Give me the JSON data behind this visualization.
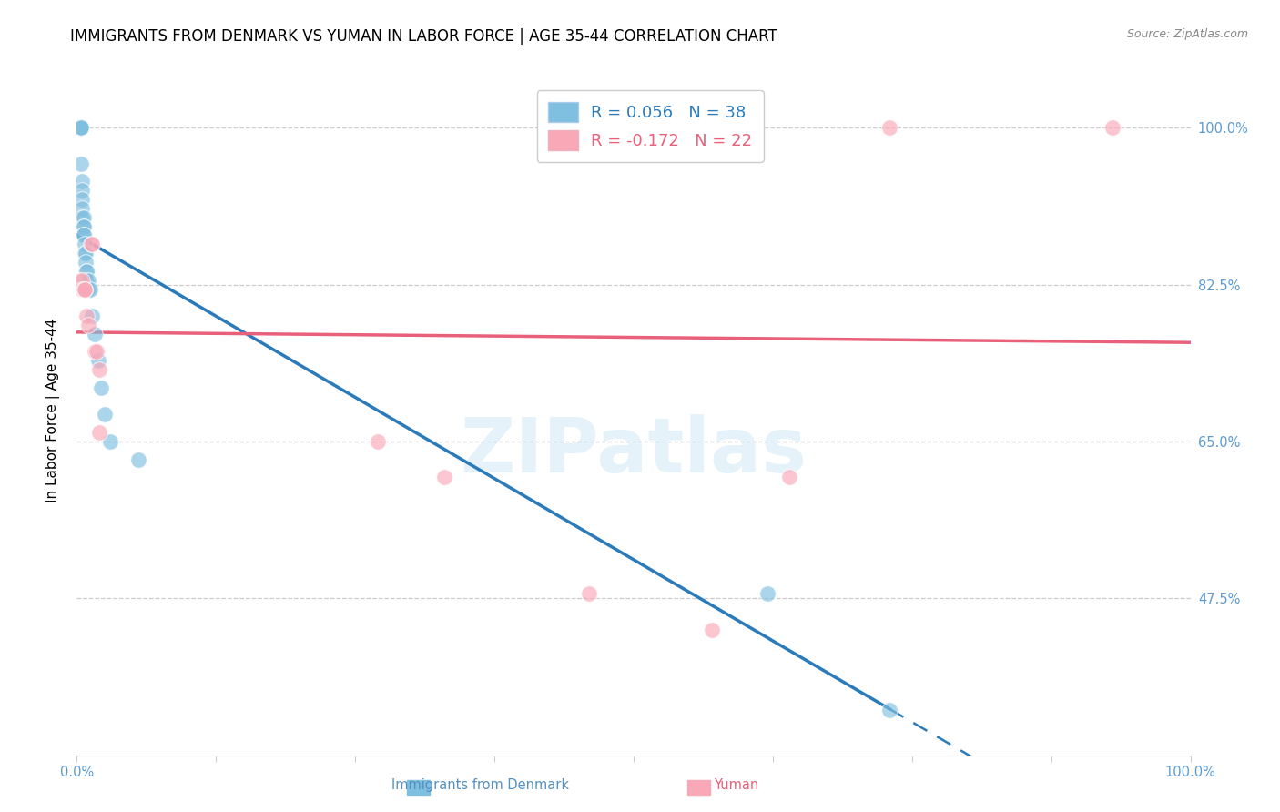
{
  "title": "IMMIGRANTS FROM DENMARK VS YUMAN IN LABOR FORCE | AGE 35-44 CORRELATION CHART",
  "source": "Source: ZipAtlas.com",
  "ylabel": "In Labor Force | Age 35-44",
  "xlim": [
    0.0,
    1.0
  ],
  "ylim": [
    0.3,
    1.07
  ],
  "yticks": [
    1.0,
    0.825,
    0.65,
    0.475
  ],
  "ytick_labels": [
    "100.0%",
    "82.5%",
    "65.0%",
    "47.5%"
  ],
  "xticks": [
    0.0,
    0.125,
    0.25,
    0.375,
    0.5,
    0.625,
    0.75,
    0.875,
    1.0
  ],
  "xtick_labels": [
    "0.0%",
    "",
    "",
    "",
    "",
    "",
    "",
    "",
    "100.0%"
  ],
  "denmark_R": 0.056,
  "denmark_N": 38,
  "yuman_R": -0.172,
  "yuman_N": 22,
  "denmark_color": "#7fbfdf",
  "yuman_color": "#f9a8b8",
  "denmark_line_color": "#2b7bba",
  "yuman_line_color": "#e8607a",
  "denmark_x": [
    0.002,
    0.002,
    0.002,
    0.003,
    0.003,
    0.004,
    0.004,
    0.004,
    0.004,
    0.005,
    0.005,
    0.005,
    0.005,
    0.005,
    0.006,
    0.006,
    0.006,
    0.006,
    0.006,
    0.007,
    0.007,
    0.008,
    0.008,
    0.009,
    0.009,
    0.009,
    0.01,
    0.01,
    0.012,
    0.014,
    0.016,
    0.019,
    0.022,
    0.025,
    0.03,
    0.055,
    0.62,
    0.73
  ],
  "denmark_y": [
    1.0,
    1.0,
    1.0,
    1.0,
    1.0,
    1.0,
    1.0,
    1.0,
    0.96,
    0.94,
    0.93,
    0.92,
    0.91,
    0.9,
    0.9,
    0.89,
    0.89,
    0.88,
    0.88,
    0.87,
    0.86,
    0.86,
    0.85,
    0.84,
    0.84,
    0.83,
    0.83,
    0.82,
    0.82,
    0.79,
    0.77,
    0.74,
    0.71,
    0.68,
    0.65,
    0.63,
    0.48,
    0.35
  ],
  "yuman_x": [
    0.003,
    0.005,
    0.005,
    0.006,
    0.007,
    0.007,
    0.009,
    0.01,
    0.013,
    0.014,
    0.016,
    0.018,
    0.02,
    0.02,
    0.27,
    0.33,
    0.45,
    0.46,
    0.57,
    0.64,
    0.73,
    0.93
  ],
  "yuman_y": [
    0.83,
    0.83,
    0.82,
    0.82,
    0.82,
    0.82,
    0.79,
    0.78,
    0.87,
    0.87,
    0.75,
    0.75,
    0.73,
    0.66,
    0.65,
    0.61,
    1.0,
    0.48,
    0.44,
    0.61,
    1.0,
    1.0
  ],
  "background_color": "#ffffff",
  "grid_color": "#cccccc",
  "tick_label_color": "#5b9bd5",
  "title_fontsize": 12,
  "axis_label_fontsize": 11,
  "tick_fontsize": 10.5,
  "legend_fontsize": 13,
  "watermark_text": "ZIPatlas",
  "watermark_color": "#d0e8f5"
}
